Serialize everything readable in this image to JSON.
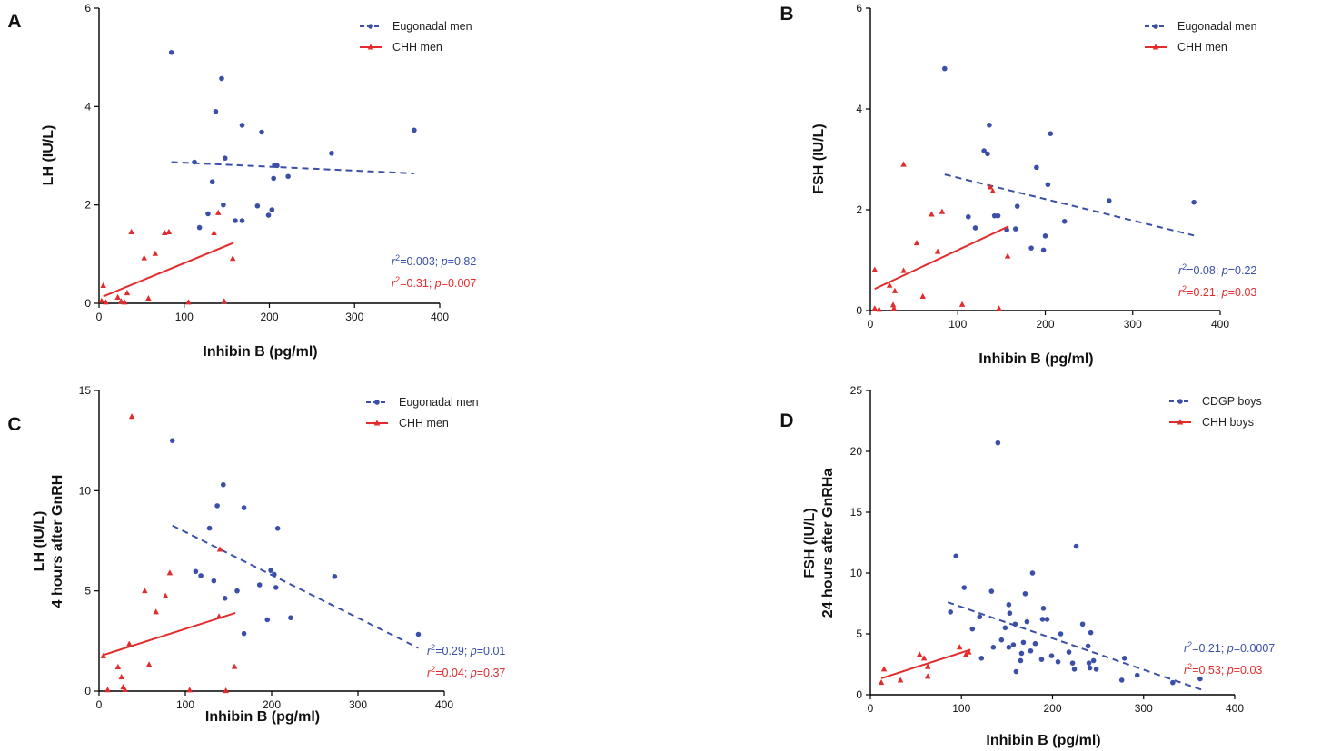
{
  "colors": {
    "blue": "#3b4fa8",
    "red": "#e32b2b"
  },
  "chart_data": [
    {
      "panel": "A",
      "type": "scatter",
      "xlabel": "Inhibin B (pg/ml)",
      "ylabel_lines": [
        "LH (IU/L)"
      ],
      "xlim": [
        0,
        400
      ],
      "ylim": [
        0,
        6
      ],
      "xticks": [
        0,
        100,
        200,
        300,
        400
      ],
      "yticks": [
        0,
        2,
        4,
        6
      ],
      "legend_position": "top-right",
      "series": [
        {
          "name": "Eugonadal men",
          "color_key": "blue",
          "marker": "circle",
          "line_style": "dashed",
          "points": [
            [
              85,
              5.1
            ],
            [
              144,
              4.57
            ],
            [
              137,
              3.9
            ],
            [
              168,
              3.62
            ],
            [
              191,
              3.48
            ],
            [
              370,
              3.52
            ],
            [
              273,
              3.05
            ],
            [
              148,
              2.95
            ],
            [
              112,
              2.87
            ],
            [
              206,
              2.81
            ],
            [
              209,
              2.8
            ],
            [
              222,
              2.58
            ],
            [
              205,
              2.54
            ],
            [
              133,
              2.47
            ],
            [
              128,
              1.82
            ],
            [
              146,
              2.0
            ],
            [
              186,
              1.98
            ],
            [
              203,
              1.9
            ],
            [
              199,
              1.79
            ],
            [
              118,
              1.54
            ],
            [
              160,
              1.68
            ],
            [
              168,
              1.68
            ]
          ],
          "fit": [
            [
              85,
              2.87
            ],
            [
              370,
              2.64
            ]
          ],
          "stat": {
            "r2": "0.003",
            "p": "0.82"
          }
        },
        {
          "name": "CHH men",
          "color_key": "red",
          "marker": "triangle",
          "line_style": "solid",
          "points": [
            [
              5,
              0.36
            ],
            [
              3,
              0.05
            ],
            [
              8,
              0.02
            ],
            [
              22,
              0.12
            ],
            [
              26,
              0.04
            ],
            [
              30,
              0.02
            ],
            [
              38,
              1.45
            ],
            [
              33,
              0.21
            ],
            [
              53,
              0.92
            ],
            [
              66,
              1.01
            ],
            [
              58,
              0.1
            ],
            [
              77,
              1.43
            ],
            [
              82,
              1.45
            ],
            [
              105,
              0.02
            ],
            [
              135,
              1.43
            ],
            [
              140,
              1.84
            ],
            [
              147,
              0.04
            ],
            [
              157,
              0.91
            ]
          ],
          "fit": [
            [
              5,
              0.14
            ],
            [
              158,
              1.23
            ]
          ],
          "stat": {
            "r2": "0.31",
            "p": "0.007"
          }
        }
      ]
    },
    {
      "panel": "B",
      "type": "scatter",
      "xlabel": "Inhibin B (pg/ml)",
      "ylabel_lines": [
        "FSH (IU/L)"
      ],
      "xlim": [
        0,
        400
      ],
      "ylim": [
        0,
        6
      ],
      "xticks": [
        0,
        100,
        200,
        300,
        400
      ],
      "yticks": [
        0,
        2,
        4,
        6
      ],
      "legend_position": "top-right",
      "series": [
        {
          "name": "Eugonadal men",
          "color_key": "blue",
          "marker": "circle",
          "line_style": "dashed",
          "points": [
            [
              85,
              4.8
            ],
            [
              136,
              3.68
            ],
            [
              206,
              3.51
            ],
            [
              130,
              3.17
            ],
            [
              134,
              3.11
            ],
            [
              190,
              2.84
            ],
            [
              203,
              2.5
            ],
            [
              273,
              2.18
            ],
            [
              370,
              2.15
            ],
            [
              142,
              1.88
            ],
            [
              146,
              1.88
            ],
            [
              112,
              1.86
            ],
            [
              168,
              2.07
            ],
            [
              120,
              1.64
            ],
            [
              156,
              1.6
            ],
            [
              166,
              1.62
            ],
            [
              222,
              1.77
            ],
            [
              200,
              1.48
            ],
            [
              184,
              1.24
            ],
            [
              198,
              1.2
            ]
          ],
          "fit": [
            [
              85,
              2.7
            ],
            [
              370,
              1.49
            ]
          ],
          "stat": {
            "r2": "0.08",
            "p": "0.22"
          }
        },
        {
          "name": "CHH men",
          "color_key": "red",
          "marker": "triangle",
          "line_style": "solid",
          "points": [
            [
              38,
              2.9
            ],
            [
              137,
              2.45
            ],
            [
              140,
              2.37
            ],
            [
              70,
              1.91
            ],
            [
              82,
              1.96
            ],
            [
              77,
              1.17
            ],
            [
              53,
              1.34
            ],
            [
              38,
              0.79
            ],
            [
              5,
              0.81
            ],
            [
              22,
              0.5
            ],
            [
              28,
              0.39
            ],
            [
              60,
              0.28
            ],
            [
              26,
              0.11
            ],
            [
              5,
              0.04
            ],
            [
              10,
              0.02
            ],
            [
              27,
              0.04
            ],
            [
              105,
              0.12
            ],
            [
              147,
              0.04
            ],
            [
              157,
              1.08
            ]
          ],
          "fit": [
            [
              5,
              0.43
            ],
            [
              158,
              1.67
            ]
          ],
          "stat": {
            "r2": "0.21",
            "p": "0.03"
          }
        }
      ]
    },
    {
      "panel": "C",
      "type": "scatter",
      "xlabel": "Inhibin B (pg/ml)",
      "ylabel_lines": [
        "LH (IU/L)",
        "4 hours after GnRH"
      ],
      "xlim": [
        0,
        400
      ],
      "ylim": [
        0,
        15
      ],
      "xticks": [
        0,
        100,
        200,
        300,
        400
      ],
      "yticks": [
        0,
        5,
        10,
        15
      ],
      "legend_position": "top-right",
      "series": [
        {
          "name": "Eugonadal men",
          "color_key": "blue",
          "marker": "circle",
          "line_style": "dashed",
          "points": [
            [
              85,
              12.5
            ],
            [
              144,
              10.3
            ],
            [
              137,
              9.25
            ],
            [
              168,
              9.15
            ],
            [
              128,
              8.13
            ],
            [
              207,
              8.12
            ],
            [
              273,
              5.72
            ],
            [
              112,
              5.97
            ],
            [
              118,
              5.76
            ],
            [
              133,
              5.5
            ],
            [
              199,
              6.02
            ],
            [
              203,
              5.82
            ],
            [
              205,
              5.17
            ],
            [
              186,
              5.3
            ],
            [
              160,
              5.0
            ],
            [
              146,
              4.63
            ],
            [
              195,
              3.56
            ],
            [
              222,
              3.66
            ],
            [
              168,
              2.87
            ],
            [
              370,
              2.83
            ]
          ],
          "fit": [
            [
              85,
              8.26
            ],
            [
              370,
              2.15
            ]
          ],
          "stat": {
            "r2": "0.29",
            "p": "0.01"
          }
        },
        {
          "name": "CHH men",
          "color_key": "red",
          "marker": "triangle",
          "line_style": "solid",
          "points": [
            [
              38,
              13.7
            ],
            [
              140,
              7.07
            ],
            [
              82,
              5.9
            ],
            [
              53,
              5.0
            ],
            [
              77,
              4.75
            ],
            [
              66,
              3.95
            ],
            [
              139,
              3.72
            ],
            [
              35,
              2.35
            ],
            [
              5,
              1.75
            ],
            [
              58,
              1.32
            ],
            [
              157,
              1.22
            ],
            [
              22,
              1.2
            ],
            [
              26,
              0.7
            ],
            [
              28,
              0.2
            ],
            [
              30,
              0.07
            ],
            [
              10,
              0.06
            ],
            [
              105,
              0.05
            ],
            [
              147,
              0.02
            ]
          ],
          "fit": [
            [
              5,
              1.8
            ],
            [
              158,
              3.9
            ]
          ],
          "stat": {
            "r2": "0.04",
            "p": "0.37"
          }
        }
      ]
    },
    {
      "panel": "D",
      "type": "scatter",
      "xlabel": "Inhibin B (pg/ml)",
      "ylabel_lines": [
        "FSH (IU/L)",
        "24 hours after GnRHa"
      ],
      "xlim": [
        0,
        400
      ],
      "ylim": [
        0,
        25
      ],
      "xticks": [
        0,
        100,
        200,
        300,
        400
      ],
      "yticks": [
        0,
        5,
        10,
        15,
        20,
        25
      ],
      "legend_position": "top-right",
      "series": [
        {
          "name": "CDGP boys",
          "color_key": "blue",
          "marker": "circle",
          "line_style": "dashed",
          "points": [
            [
              140,
              20.7
            ],
            [
              226,
              12.2
            ],
            [
              94,
              11.4
            ],
            [
              178,
              10.0
            ],
            [
              103,
              8.8
            ],
            [
              133,
              8.5
            ],
            [
              170,
              8.3
            ],
            [
              152,
              7.4
            ],
            [
              190,
              7.1
            ],
            [
              88,
              6.8
            ],
            [
              120,
              6.4
            ],
            [
              153,
              6.7
            ],
            [
              189,
              6.2
            ],
            [
              194,
              6.2
            ],
            [
              172,
              6.0
            ],
            [
              159,
              5.8
            ],
            [
              233,
              5.8
            ],
            [
              112,
              5.4
            ],
            [
              148,
              5.5
            ],
            [
              209,
              5.0
            ],
            [
              242,
              5.1
            ],
            [
              144,
              4.5
            ],
            [
              157,
              4.1
            ],
            [
              168,
              4.3
            ],
            [
              181,
              4.2
            ],
            [
              135,
              3.9
            ],
            [
              176,
              3.6
            ],
            [
              239,
              4.0
            ],
            [
              122,
              3.0
            ],
            [
              152,
              3.9
            ],
            [
              166,
              3.4
            ],
            [
              199,
              3.2
            ],
            [
              218,
              3.5
            ],
            [
              279,
              3.0
            ],
            [
              165,
              2.8
            ],
            [
              188,
              2.9
            ],
            [
              206,
              2.7
            ],
            [
              222,
              2.6
            ],
            [
              240,
              2.6
            ],
            [
              245,
              2.8
            ],
            [
              160,
              1.9
            ],
            [
              224,
              2.1
            ],
            [
              241,
              2.2
            ],
            [
              248,
              2.1
            ],
            [
              293,
              1.6
            ],
            [
              276,
              1.2
            ],
            [
              332,
              1.0
            ],
            [
              362,
              1.3
            ]
          ],
          "fit": [
            [
              85,
              7.6
            ],
            [
              368,
              0.3
            ]
          ],
          "stat": {
            "r2": "0.21",
            "p": "0.0007"
          }
        },
        {
          "name": "CHH boys",
          "color_key": "red",
          "marker": "triangle",
          "line_style": "solid",
          "points": [
            [
              15,
              2.1
            ],
            [
              12,
              1.0
            ],
            [
              33,
              1.2
            ],
            [
              54,
              3.3
            ],
            [
              59,
              3.0
            ],
            [
              63,
              2.3
            ],
            [
              63,
              1.5
            ],
            [
              98,
              3.9
            ],
            [
              105,
              3.3
            ],
            [
              108,
              3.5
            ]
          ],
          "fit": [
            [
              12,
              1.35
            ],
            [
              110,
              3.7
            ]
          ],
          "stat": {
            "r2": "0.53",
            "p": "0.03"
          }
        }
      ]
    }
  ]
}
